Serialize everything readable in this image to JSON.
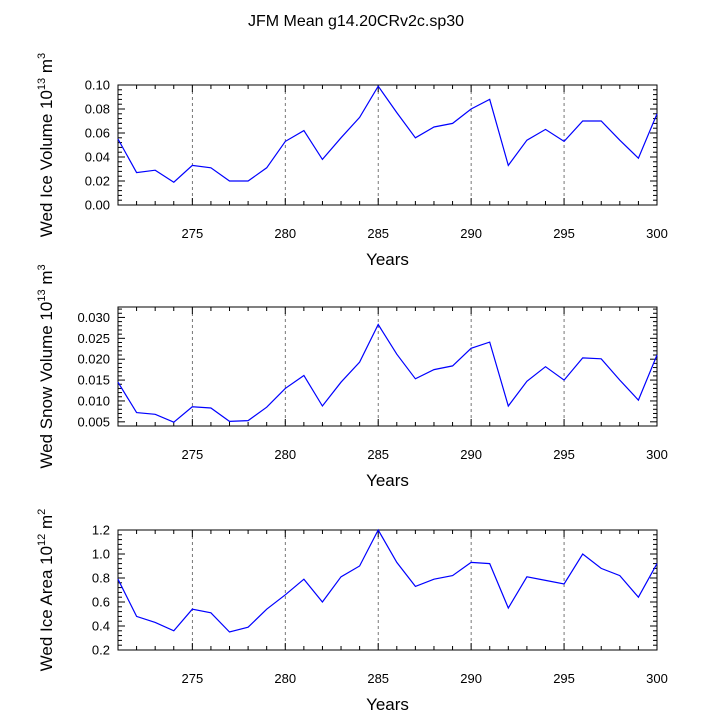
{
  "title": "JFM Mean g14.20CRv2c.sp30",
  "chart_data": [
    {
      "type": "line",
      "xlabel": "Years",
      "ylabel": {
        "main": "Wed Ice Volume 10",
        "sup1": "13",
        "mid": " m",
        "sup2": "3"
      },
      "xlim": [
        271,
        300
      ],
      "ylim": [
        0,
        0.1
      ],
      "xticks": [
        275,
        280,
        285,
        290,
        295,
        300
      ],
      "xtick_labels": [
        "275",
        "280",
        "285",
        "290",
        "295",
        "300"
      ],
      "yticks": [
        0,
        0.02,
        0.04,
        0.06,
        0.08,
        0.1
      ],
      "ytick_labels": [
        "0.00",
        "0.02",
        "0.04",
        "0.06",
        "0.08",
        "0.10"
      ],
      "grid_x": [
        275,
        280,
        285,
        290,
        295
      ],
      "color": "#0000ff",
      "x": [
        271,
        272,
        273,
        274,
        275,
        276,
        277,
        278,
        279,
        280,
        281,
        282,
        283,
        284,
        285,
        286,
        287,
        288,
        289,
        290,
        291,
        292,
        293,
        294,
        295,
        296,
        297,
        298,
        299,
        300
      ],
      "y": [
        0.055,
        0.027,
        0.029,
        0.019,
        0.033,
        0.031,
        0.02,
        0.02,
        0.031,
        0.053,
        0.062,
        0.038,
        0.056,
        0.073,
        0.099,
        0.077,
        0.056,
        0.065,
        0.068,
        0.08,
        0.088,
        0.033,
        0.054,
        0.063,
        0.053,
        0.07,
        0.07,
        0.054,
        0.039,
        0.076
      ]
    },
    {
      "type": "line",
      "xlabel": "Years",
      "ylabel": {
        "main": "Wed Snow Volume 10",
        "sup1": "13",
        "mid": " m",
        "sup2": "3"
      },
      "xlim": [
        271,
        300
      ],
      "ylim": [
        0.004,
        0.0325
      ],
      "xticks": [
        275,
        280,
        285,
        290,
        295,
        300
      ],
      "xtick_labels": [
        "275",
        "280",
        "285",
        "290",
        "295",
        "300"
      ],
      "yticks": [
        0.005,
        0.01,
        0.015,
        0.02,
        0.025,
        0.03
      ],
      "ytick_labels": [
        "0.005",
        "0.010",
        "0.015",
        "0.020",
        "0.025",
        "0.030"
      ],
      "grid_x": [
        275,
        280,
        285,
        290,
        295
      ],
      "color": "#0000ff",
      "x": [
        271,
        272,
        273,
        274,
        275,
        276,
        277,
        278,
        279,
        280,
        281,
        282,
        283,
        284,
        285,
        286,
        287,
        288,
        289,
        290,
        291,
        292,
        293,
        294,
        295,
        296,
        297,
        298,
        299,
        300
      ],
      "y": [
        0.0145,
        0.0072,
        0.0068,
        0.0049,
        0.0086,
        0.0083,
        0.0051,
        0.0053,
        0.0085,
        0.013,
        0.0161,
        0.0088,
        0.0145,
        0.0193,
        0.0283,
        0.0212,
        0.0153,
        0.0175,
        0.0184,
        0.0226,
        0.0241,
        0.0088,
        0.0147,
        0.0182,
        0.015,
        0.0203,
        0.0201,
        0.015,
        0.0102,
        0.021
      ]
    },
    {
      "type": "line",
      "xlabel": "Years",
      "ylabel": {
        "main": "Wed Ice Area 10",
        "sup1": "12",
        "mid": " m",
        "sup2": "2"
      },
      "xlim": [
        271,
        300
      ],
      "ylim": [
        0.2,
        1.2
      ],
      "xticks": [
        275,
        280,
        285,
        290,
        295,
        300
      ],
      "xtick_labels": [
        "275",
        "280",
        "285",
        "290",
        "295",
        "300"
      ],
      "yticks": [
        0.2,
        0.4,
        0.6,
        0.8,
        1.0,
        1.2
      ],
      "ytick_labels": [
        "0.2",
        "0.4",
        "0.6",
        "0.8",
        "1.0",
        "1.2"
      ],
      "grid_x": [
        275,
        280,
        285,
        290,
        295
      ],
      "color": "#0000ff",
      "x": [
        271,
        272,
        273,
        274,
        275,
        276,
        277,
        278,
        279,
        280,
        281,
        282,
        283,
        284,
        285,
        286,
        287,
        288,
        289,
        290,
        291,
        292,
        293,
        294,
        295,
        296,
        297,
        298,
        299,
        300
      ],
      "y": [
        0.79,
        0.48,
        0.43,
        0.36,
        0.54,
        0.51,
        0.35,
        0.39,
        0.54,
        0.66,
        0.79,
        0.6,
        0.81,
        0.9,
        1.2,
        0.93,
        0.73,
        0.79,
        0.82,
        0.93,
        0.92,
        0.55,
        0.81,
        0.78,
        0.75,
        1.0,
        0.88,
        0.82,
        0.64,
        0.92
      ]
    }
  ]
}
